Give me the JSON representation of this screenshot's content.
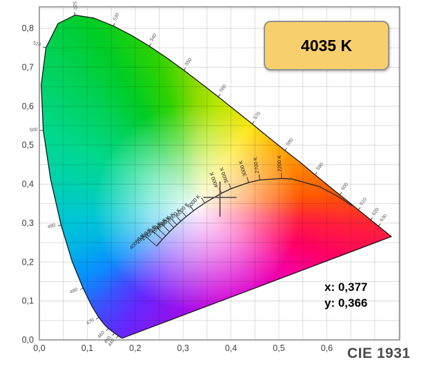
{
  "badge": {
    "label": "4035 K",
    "bg_color": "#f8cf6d",
    "border_color": "#919191"
  },
  "readout": {
    "x": "x: 0,377",
    "y": "y: 0,366"
  },
  "footer_label": "CIE 1931",
  "chart_data": {
    "type": "scatter",
    "subtype": "cie-1931-chromaticity-diagram",
    "title": "CIE 1931",
    "xlabel": "",
    "ylabel": "",
    "xlim": [
      0,
      0.752
    ],
    "ylim": [
      0,
      0.855
    ],
    "grid_step": 0.05,
    "grid_on": true,
    "x_ticks": {
      "values": [
        0,
        0.1,
        0.2,
        0.3,
        0.4,
        0.5,
        0.6
      ],
      "labels": [
        "0,0",
        "0,1",
        "0,2",
        "0,3",
        "0,4",
        "0,5",
        "0,6"
      ]
    },
    "y_ticks": {
      "values": [
        0,
        0.1,
        0.2,
        0.3,
        0.4,
        0.5,
        0.6,
        0.7,
        0.8
      ],
      "labels": [
        "0,0",
        "0,1",
        "0,2",
        "0,3",
        "0,4",
        "0,5",
        "0,6",
        "0,7",
        "0,8"
      ]
    },
    "marker": {
      "x": 0.377,
      "y": 0.366,
      "cct": "4035 K"
    },
    "spectral_locus": [
      [
        380,
        0.1741,
        0.005
      ],
      [
        410,
        0.1726,
        0.0048
      ],
      [
        420,
        0.1714,
        0.0051
      ],
      [
        430,
        0.1689,
        0.0069
      ],
      [
        440,
        0.1644,
        0.0109
      ],
      [
        450,
        0.1566,
        0.0177
      ],
      [
        460,
        0.144,
        0.0297
      ],
      [
        465,
        0.1355,
        0.0399
      ],
      [
        470,
        0.1241,
        0.0578
      ],
      [
        475,
        0.1096,
        0.0868
      ],
      [
        480,
        0.0913,
        0.1327
      ],
      [
        485,
        0.0687,
        0.2007
      ],
      [
        490,
        0.0454,
        0.295
      ],
      [
        495,
        0.0235,
        0.4127
      ],
      [
        500,
        0.0082,
        0.5384
      ],
      [
        505,
        0.0039,
        0.6548
      ],
      [
        510,
        0.0139,
        0.7502
      ],
      [
        515,
        0.0389,
        0.812
      ],
      [
        520,
        0.0743,
        0.8338
      ],
      [
        525,
        0.1142,
        0.8262
      ],
      [
        530,
        0.1547,
        0.8059
      ],
      [
        535,
        0.1931,
        0.7816
      ],
      [
        540,
        0.2296,
        0.7543
      ],
      [
        545,
        0.2658,
        0.7243
      ],
      [
        550,
        0.3016,
        0.6923
      ],
      [
        555,
        0.3373,
        0.6588
      ],
      [
        560,
        0.3731,
        0.6245
      ],
      [
        565,
        0.4087,
        0.5896
      ],
      [
        570,
        0.4441,
        0.5547
      ],
      [
        575,
        0.4784,
        0.5202
      ],
      [
        580,
        0.5125,
        0.4866
      ],
      [
        585,
        0.5448,
        0.4557
      ],
      [
        590,
        0.5752,
        0.4242
      ],
      [
        595,
        0.6029,
        0.3965
      ],
      [
        600,
        0.627,
        0.3725
      ],
      [
        605,
        0.6482,
        0.3515
      ],
      [
        610,
        0.6658,
        0.334
      ],
      [
        615,
        0.6801,
        0.3199
      ],
      [
        620,
        0.6915,
        0.3083
      ],
      [
        625,
        0.7006,
        0.2993
      ],
      [
        630,
        0.7079,
        0.292
      ],
      [
        640,
        0.719,
        0.2809
      ],
      [
        700,
        0.7347,
        0.2653
      ]
    ],
    "wavelength_labeled": [
      440,
      450,
      460,
      470,
      480,
      490,
      500,
      510,
      520,
      530,
      540,
      550,
      560,
      570,
      580,
      590,
      600,
      610,
      620,
      630
    ],
    "planckian_locus": [
      {
        "cct": 40000,
        "x": 0.2445,
        "y": 0.2411,
        "label": "40000 K",
        "tick": 21
      },
      {
        "cct": 20000,
        "x": 0.2565,
        "y": 0.2577,
        "label": "20000 K",
        "tick": 19
      },
      {
        "cct": 15000,
        "x": 0.2637,
        "y": 0.2673,
        "label": "15000 K",
        "tick": 17
      },
      {
        "cct": 12000,
        "x": 0.2717,
        "y": 0.2776,
        "label": "12000 K",
        "tick": 15
      },
      {
        "cct": 10000,
        "x": 0.2807,
        "y": 0.2884,
        "label": "10000 K",
        "tick": 13
      },
      {
        "cct": 9000,
        "x": 0.2869,
        "y": 0.2956,
        "label": "9000 K",
        "tick": 12
      },
      {
        "cct": 8000,
        "x": 0.2952,
        "y": 0.3048,
        "label": "8000 K",
        "tick": 11
      },
      {
        "cct": 7000,
        "x": 0.3064,
        "y": 0.3166,
        "label": "7000 K",
        "tick": 10
      },
      {
        "cct": 6000,
        "x": 0.3221,
        "y": 0.3318,
        "label": "6000 K",
        "tick": 9
      },
      {
        "cct": 5000,
        "x": 0.3451,
        "y": 0.3516,
        "label": "5000 K",
        "tick": 9
      },
      {
        "cct": 4000,
        "x": 0.3805,
        "y": 0.3768,
        "label": "4000 K",
        "tick": 8
      },
      {
        "cct": 3600,
        "x": 0.3999,
        "y": 0.3881,
        "label": "3600 K",
        "tick": 8
      },
      {
        "cct": 3000,
        "x": 0.4369,
        "y": 0.4041,
        "label": "3000 K",
        "tick": 8
      },
      {
        "cct": 2700,
        "x": 0.4599,
        "y": 0.4106,
        "label": "2700 K",
        "tick": 8
      },
      {
        "cct": 2200,
        "x": 0.5056,
        "y": 0.4146,
        "label": "2200 K",
        "tick": 8
      },
      {
        "cct": 2000,
        "x": 0.5267,
        "y": 0.4133
      },
      {
        "cct": 1500,
        "x": 0.5857,
        "y": 0.3931
      },
      {
        "cct": 1200,
        "x": 0.625,
        "y": 0.367
      },
      {
        "cct": 1000,
        "x": 0.6528,
        "y": 0.3444
      }
    ],
    "gradient": {
      "center": [
        0.33,
        0.34
      ],
      "white_core": "#ffffff",
      "stops": [
        [
          0,
          "#8fdc00"
        ],
        [
          10,
          "#b4e600"
        ],
        [
          33,
          "#ffe400"
        ],
        [
          50,
          "#ffb400"
        ],
        [
          68,
          "#ff8800"
        ],
        [
          84,
          "#ff5a00"
        ],
        [
          97,
          "#ff1e3c"
        ],
        [
          110,
          "#ff0064"
        ],
        [
          125,
          "#f600a0"
        ],
        [
          145,
          "#e100c8"
        ],
        [
          170,
          "#c800dc"
        ],
        [
          195,
          "#8c14f0"
        ],
        [
          212,
          "#6428ff"
        ],
        [
          224,
          "#3c50ff"
        ],
        [
          237,
          "#0a8cff"
        ],
        [
          252,
          "#00b4e6"
        ],
        [
          266,
          "#00c8d2"
        ],
        [
          282,
          "#00d2aa"
        ],
        [
          297,
          "#00d88c"
        ],
        [
          315,
          "#00d25a"
        ],
        [
          330,
          "#00cd25"
        ],
        [
          345,
          "#2ed200"
        ],
        [
          360,
          "#8fdc00"
        ]
      ]
    },
    "colors": {
      "grid": "rgba(0,0,0,0.15)",
      "axis_box": "#858585",
      "axis_label": "#3c3c3c",
      "locus_outline": "#161616",
      "planckian_curve": "#2b2b2b",
      "crosshair": "#4d4d4d",
      "wavelength_label": "#555555",
      "cct_label": "#222222"
    }
  }
}
